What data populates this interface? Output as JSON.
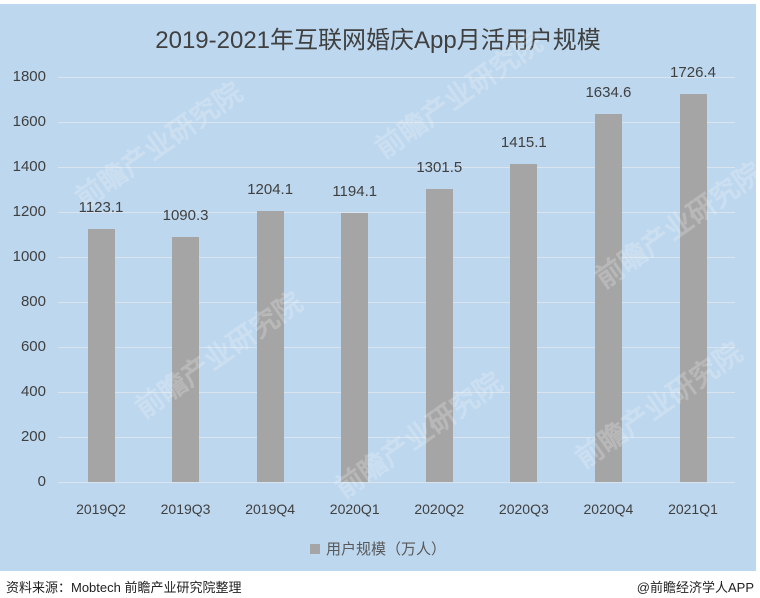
{
  "chart_data": {
    "type": "bar",
    "title": "2019-2021年互联网婚庆App月活用户规模",
    "categories": [
      "2019Q2",
      "2019Q3",
      "2019Q4",
      "2020Q1",
      "2020Q2",
      "2020Q3",
      "2020Q4",
      "2021Q1"
    ],
    "series": [
      {
        "name": "用户规模（万人）",
        "values": [
          1123.1,
          1090.3,
          1204.1,
          1194.1,
          1301.5,
          1415.1,
          1634.6,
          1726.4
        ],
        "color": "#a5a5a5"
      }
    ],
    "xlabel": "",
    "ylabel": "",
    "ylim": [
      0,
      1800
    ],
    "yticks": [
      0,
      200,
      400,
      600,
      800,
      1000,
      1200,
      1400,
      1600,
      1800
    ],
    "grid": true,
    "legend_position": "bottom",
    "background_color": "#bdd7ee",
    "data_labels": [
      "1123.1",
      "1090.3",
      "1204.1",
      "1194.1",
      "1301.5",
      "1415.1",
      "1634.6",
      "1726.4"
    ]
  },
  "title": "2019-2021年互联网婚庆App月活用户规模",
  "legend": {
    "label": "用户规模（万人）"
  },
  "footer": {
    "source": "资料来源：Mobtech 前瞻产业研究院整理",
    "credit": "@前瞻经济学人APP"
  },
  "watermark": "前瞻产业研究院"
}
